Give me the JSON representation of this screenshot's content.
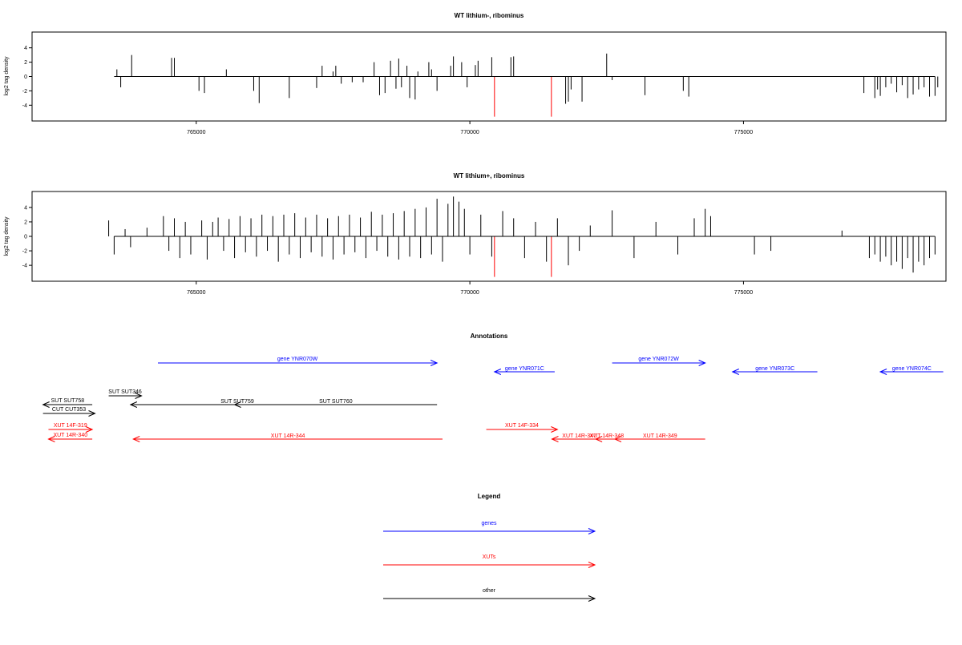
{
  "panels": [
    {
      "title": "WT lithium-, ribominus",
      "ylabel": "log2 tag density",
      "xticks": [
        "765000",
        "770000",
        "775000"
      ],
      "yticks": [
        "4",
        "2",
        "0",
        "-2",
        "-4"
      ]
    },
    {
      "title": "WT lithium+, ribominus",
      "ylabel": "log2 tag density",
      "xticks": [
        "765000",
        "770000",
        "775000"
      ],
      "yticks": [
        "4",
        "2",
        "0",
        "-2",
        "-4"
      ]
    }
  ],
  "annotations_title": "Annotations",
  "legend_title": "Legend",
  "legend_items": [
    {
      "label": "genes",
      "color": "#0000ff"
    },
    {
      "label": "XUTs",
      "color": "#ff0000"
    },
    {
      "label": "other",
      "color": "#000000"
    }
  ],
  "colors": {
    "gene": "#0000ff",
    "xut": "#ff0000",
    "other": "#000000",
    "highlight": "#ff0000"
  },
  "chart_data": [
    {
      "type": "bar",
      "title": "WT lithium-, ribominus",
      "ylabel": "log2 tag density",
      "xlim": [
        762000,
        778700
      ],
      "ylim": [
        -6.2,
        6.2
      ],
      "xlabel": "",
      "series": [
        {
          "x": [
            763550,
            763620,
            763820,
            764550,
            764600,
            765050,
            765150,
            765550,
            766050,
            766150,
            766700,
            767200,
            767300,
            767500,
            767550,
            767650,
            767850,
            768050,
            768250,
            768350,
            768450,
            768550,
            768650,
            768700,
            768750,
            768850,
            768900,
            769000,
            769050,
            769250,
            769300,
            769400,
            769650,
            769700,
            769850,
            769950,
            770100,
            770150,
            770400,
            770750,
            770800,
            771750,
            771800,
            771850,
            772050,
            772500,
            772600,
            773200,
            773900,
            774000,
            777200,
            777400,
            777450,
            777500,
            777600,
            777700,
            777800,
            777900,
            778000,
            778100,
            778200,
            778300,
            778400,
            778500,
            778550
          ],
          "values": [
            1.0,
            -1.5,
            3.0,
            2.6,
            2.6,
            -2.0,
            -2.3,
            1.0,
            -2.0,
            -3.7,
            -3.0,
            -1.6,
            1.5,
            0.7,
            1.5,
            -1.0,
            -0.8,
            -0.8,
            2.0,
            -2.6,
            -2.3,
            2.2,
            -1.7,
            2.5,
            -1.5,
            1.5,
            -3.0,
            -3.2,
            0.7,
            2.0,
            1.0,
            -2.0,
            1.5,
            2.8,
            2.0,
            -1.5,
            1.6,
            2.2,
            2.7,
            2.7,
            2.8,
            -3.8,
            -3.5,
            -1.8,
            -3.5,
            3.2,
            -0.5,
            -2.6,
            -2.0,
            -2.8,
            -2.3,
            -3.0,
            -1.8,
            -2.7,
            -1.5,
            -1.0,
            -2.2,
            -1.2,
            -3.0,
            -2.5,
            -1.8,
            -1.5,
            -2.8,
            -2.7,
            -1.5
          ]
        },
        {
          "name": "",
          "color": "#ff0000",
          "x": [
            770450,
            771490
          ],
          "values": [
            -5.6,
            -5.6
          ]
        }
      ]
    },
    {
      "type": "bar",
      "title": "WT lithium+, ribominus",
      "ylabel": "log2 tag density",
      "xlim": [
        762000,
        778700
      ],
      "ylim": [
        -6.2,
        6.2
      ],
      "xlabel": "",
      "series": [
        {
          "x": [
            763400,
            763500,
            763700,
            763800,
            764100,
            764400,
            764500,
            764600,
            764700,
            764800,
            764900,
            765100,
            765200,
            765300,
            765400,
            765500,
            765600,
            765700,
            765800,
            765900,
            766000,
            766100,
            766200,
            766300,
            766400,
            766500,
            766600,
            766700,
            766800,
            766900,
            767000,
            767100,
            767200,
            767300,
            767400,
            767500,
            767600,
            767700,
            767800,
            767900,
            768000,
            768100,
            768200,
            768300,
            768400,
            768500,
            768600,
            768700,
            768800,
            768900,
            769000,
            769100,
            769200,
            769300,
            769400,
            769500,
            769600,
            769700,
            769800,
            769900,
            770000,
            770200,
            770400,
            770600,
            770800,
            771000,
            771200,
            771400,
            771600,
            771800,
            772000,
            772200,
            772600,
            773000,
            773400,
            773800,
            774100,
            774300,
            774400,
            775200,
            775500,
            776800,
            777300,
            777400,
            777500,
            777600,
            777700,
            777800,
            777900,
            778000,
            778100,
            778200,
            778300,
            778400,
            778500
          ],
          "values": [
            2.2,
            -2.5,
            1.0,
            -1.5,
            1.2,
            2.8,
            -2.0,
            2.5,
            -3.0,
            2.0,
            -2.5,
            2.2,
            -3.2,
            2.0,
            2.6,
            -2.0,
            2.4,
            -3.0,
            2.8,
            -2.2,
            2.5,
            -2.8,
            3.0,
            -2.0,
            2.8,
            -3.5,
            3.0,
            -2.5,
            3.2,
            -3.0,
            2.6,
            -2.2,
            3.0,
            -2.8,
            2.5,
            -3.2,
            2.8,
            -2.5,
            3.0,
            -2.2,
            2.6,
            -3.0,
            3.4,
            -2.0,
            3.0,
            -2.8,
            3.2,
            -3.2,
            3.5,
            -2.8,
            3.8,
            -3.0,
            4.0,
            -2.5,
            5.2,
            -3.5,
            4.5,
            5.5,
            4.8,
            3.8,
            -2.5,
            3.0,
            -2.8,
            3.5,
            2.5,
            -3.0,
            2.0,
            -3.5,
            2.5,
            -4.0,
            -2.0,
            1.5,
            3.6,
            -3.0,
            2.0,
            -2.5,
            2.5,
            3.8,
            2.8,
            -2.5,
            -2.0,
            0.8,
            -3.0,
            -2.5,
            -3.5,
            -2.8,
            -4.0,
            -3.5,
            -4.5,
            -3.0,
            -5.0,
            -3.5,
            -4.0,
            -3.0,
            -2.5
          ]
        },
        {
          "name": "",
          "color": "#ff0000",
          "x": [
            770450,
            771490
          ],
          "values": [
            -5.6,
            -5.6
          ]
        }
      ]
    }
  ],
  "annotations": [
    {
      "label": "gene YNR070W",
      "type": "gene",
      "start": 764300,
      "end": 769400,
      "dir": "right",
      "row": 0,
      "labelpos": "above"
    },
    {
      "label": "gene YNR071C",
      "type": "gene",
      "start": 770450,
      "end": 771550,
      "dir": "left",
      "row": 1,
      "labelpos": "mid"
    },
    {
      "label": "gene YNR072W",
      "type": "gene",
      "start": 772600,
      "end": 774300,
      "dir": "right",
      "row": 0,
      "labelpos": "above"
    },
    {
      "label": "gene YNR073C",
      "type": "gene",
      "start": 774800,
      "end": 776350,
      "dir": "left",
      "row": 1,
      "labelpos": "mid"
    },
    {
      "label": "gene YNR074C",
      "type": "gene",
      "start": 777500,
      "end": 778650,
      "dir": "left",
      "row": 1,
      "labelpos": "mid"
    },
    {
      "label": "SUT SUT758",
      "type": "other",
      "start": 762200,
      "end": 763100,
      "dir": "left",
      "row": 3,
      "labelpos": "above"
    },
    {
      "label": "CUT CUT353",
      "type": "other",
      "start": 762200,
      "end": 763150,
      "dir": "right",
      "row": 4,
      "labelpos": "above"
    },
    {
      "label": "SUT SUT346",
      "type": "other",
      "start": 763400,
      "end": 764000,
      "dir": "right",
      "row": 2,
      "labelpos": "above"
    },
    {
      "label": "SUT SUT759",
      "type": "other",
      "start": 763800,
      "end": 767700,
      "dir": "left",
      "row": 3,
      "labelpos": "mid"
    },
    {
      "label": "SUT SUT760",
      "type": "other",
      "start": 765700,
      "end": 769400,
      "dir": "left",
      "row": 3,
      "labelpos": "mid"
    },
    {
      "label": "XUT 14F-319",
      "type": "xut",
      "start": 762300,
      "end": 763100,
      "dir": "right",
      "row": 5,
      "labelpos": "above"
    },
    {
      "label": "XUT 14R-340",
      "type": "xut",
      "start": 762300,
      "end": 763100,
      "dir": "left",
      "row": 6,
      "labelpos": "above"
    },
    {
      "label": "XUT 14R-344",
      "type": "xut",
      "start": 763850,
      "end": 769500,
      "dir": "left",
      "row": 6,
      "labelpos": "mid"
    },
    {
      "label": "XUT 14F-334",
      "type": "xut",
      "start": 770300,
      "end": 771600,
      "dir": "right",
      "row": 5,
      "labelpos": "above"
    },
    {
      "label": "XUT 14R-347",
      "type": "xut",
      "start": 771500,
      "end": 772500,
      "dir": "left",
      "row": 6,
      "labelpos": "mid"
    },
    {
      "label": "XUT 14R-348",
      "type": "xut",
      "start": 772300,
      "end": 772700,
      "dir": "left",
      "row": 6,
      "labelpos": "mid"
    },
    {
      "label": "XUT 14R-349",
      "type": "xut",
      "start": 772650,
      "end": 774300,
      "dir": "left",
      "row": 6,
      "labelpos": "mid"
    }
  ]
}
